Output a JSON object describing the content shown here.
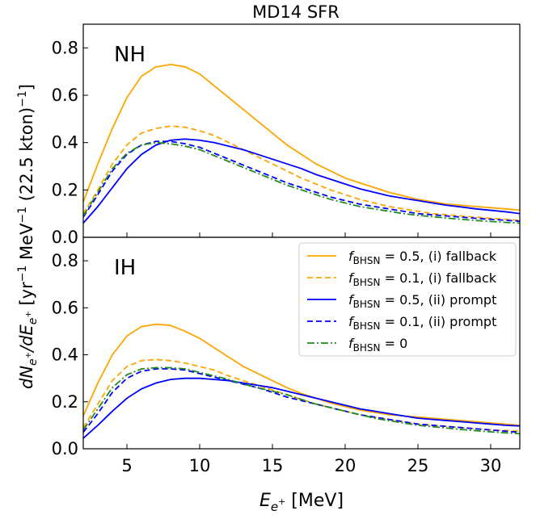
{
  "chart_data": {
    "type": "line",
    "title": "MD14 SFR",
    "xlabel": "E_{e^+} [MeV]",
    "ylabel": "dN_{e^+}/dE_{e^+} [yr^{-1} MeV^{-1} (22.5 kton)^{-1}]",
    "xlim": [
      2,
      32
    ],
    "ylim": [
      0,
      0.9
    ],
    "x_ticks": [
      5,
      10,
      15,
      20,
      25,
      30
    ],
    "y_ticks": [
      0.0,
      0.2,
      0.4,
      0.6,
      0.8
    ],
    "x": [
      2,
      3,
      4,
      5,
      6,
      7,
      8,
      9,
      10,
      11,
      12,
      13,
      14,
      15,
      16,
      17,
      18,
      19,
      20,
      21,
      22,
      23,
      24,
      25,
      26,
      27,
      28,
      29,
      30,
      31,
      32
    ],
    "legend": {
      "panel": "IH",
      "location": "upper-right",
      "entries": [
        {
          "prefix": "f",
          "sub": "BHSN",
          "suffix": " = 0.5, (i) fallback",
          "color": "#FFA500",
          "dash": "solid"
        },
        {
          "prefix": "f",
          "sub": "BHSN",
          "suffix": " = 0.1, (i) fallback",
          "color": "#FFA500",
          "dash": "dashed"
        },
        {
          "prefix": "f",
          "sub": "BHSN",
          "suffix": " = 0.5, (ii) prompt",
          "color": "#0000FF",
          "dash": "solid"
        },
        {
          "prefix": "f",
          "sub": "BHSN",
          "suffix": " = 0.1, (ii) prompt",
          "color": "#0000FF",
          "dash": "dashed"
        },
        {
          "prefix": "f",
          "sub": "BHSN",
          "suffix": " = 0",
          "color": "#228B22",
          "dash": "dashdot"
        }
      ]
    },
    "panels": [
      {
        "label": "NH",
        "series": [
          {
            "color": "#FFA500",
            "dash": "solid",
            "values": [
              0.15,
              0.31,
              0.46,
              0.59,
              0.68,
              0.72,
              0.73,
              0.72,
              0.69,
              0.64,
              0.59,
              0.54,
              0.49,
              0.44,
              0.39,
              0.35,
              0.31,
              0.28,
              0.25,
              0.23,
              0.21,
              0.19,
              0.175,
              0.16,
              0.15,
              0.14,
              0.135,
              0.13,
              0.125,
              0.12,
              0.115
            ]
          },
          {
            "color": "#FFA500",
            "dash": "dashed",
            "values": [
              0.1,
              0.2,
              0.31,
              0.39,
              0.44,
              0.46,
              0.47,
              0.465,
              0.45,
              0.43,
              0.4,
              0.37,
              0.34,
              0.31,
              0.28,
              0.25,
              0.225,
              0.2,
              0.18,
              0.16,
              0.145,
              0.13,
              0.12,
              0.11,
              0.1,
              0.095,
              0.09,
              0.085,
              0.08,
              0.076,
              0.072
            ]
          },
          {
            "color": "#0000FF",
            "dash": "solid",
            "values": [
              0.06,
              0.13,
              0.21,
              0.29,
              0.35,
              0.39,
              0.41,
              0.415,
              0.41,
              0.4,
              0.385,
              0.37,
              0.35,
              0.33,
              0.31,
              0.29,
              0.265,
              0.245,
              0.225,
              0.205,
              0.19,
              0.175,
              0.165,
              0.155,
              0.145,
              0.135,
              0.128,
              0.12,
              0.114,
              0.108,
              0.1
            ]
          },
          {
            "color": "#0000FF",
            "dash": "dashed",
            "values": [
              0.085,
              0.18,
              0.28,
              0.35,
              0.39,
              0.405,
              0.405,
              0.395,
              0.38,
              0.355,
              0.33,
              0.305,
              0.28,
              0.255,
              0.23,
              0.21,
              0.19,
              0.17,
              0.155,
              0.14,
              0.13,
              0.12,
              0.11,
              0.1,
              0.095,
              0.09,
              0.085,
              0.08,
              0.076,
              0.072,
              0.068
            ]
          },
          {
            "color": "#228B22",
            "dash": "dashdot",
            "values": [
              0.09,
              0.19,
              0.29,
              0.355,
              0.39,
              0.4,
              0.395,
              0.385,
              0.37,
              0.345,
              0.32,
              0.295,
              0.27,
              0.245,
              0.22,
              0.2,
              0.18,
              0.16,
              0.145,
              0.13,
              0.12,
              0.11,
              0.1,
              0.093,
              0.087,
              0.081,
              0.076,
              0.071,
              0.067,
              0.063,
              0.06
            ]
          }
        ]
      },
      {
        "label": "IH",
        "series": [
          {
            "color": "#FFA500",
            "dash": "solid",
            "values": [
              0.14,
              0.28,
              0.4,
              0.48,
              0.52,
              0.53,
              0.525,
              0.5,
              0.47,
              0.43,
              0.39,
              0.35,
              0.32,
              0.29,
              0.26,
              0.235,
              0.215,
              0.195,
              0.18,
              0.165,
              0.155,
              0.145,
              0.14,
              0.135,
              0.13,
              0.125,
              0.12,
              0.115,
              0.11,
              0.105,
              0.1
            ]
          },
          {
            "color": "#FFA500",
            "dash": "dashed",
            "values": [
              0.09,
              0.19,
              0.29,
              0.35,
              0.375,
              0.38,
              0.375,
              0.365,
              0.35,
              0.335,
              0.31,
              0.29,
              0.27,
              0.25,
              0.23,
              0.21,
              0.19,
              0.175,
              0.16,
              0.145,
              0.135,
              0.125,
              0.115,
              0.105,
              0.1,
              0.095,
              0.09,
              0.085,
              0.08,
              0.078,
              0.075
            ]
          },
          {
            "color": "#0000FF",
            "dash": "solid",
            "values": [
              0.045,
              0.1,
              0.16,
              0.215,
              0.255,
              0.28,
              0.295,
              0.3,
              0.3,
              0.295,
              0.29,
              0.28,
              0.27,
              0.26,
              0.245,
              0.23,
              0.215,
              0.2,
              0.185,
              0.17,
              0.16,
              0.15,
              0.14,
              0.13,
              0.125,
              0.12,
              0.115,
              0.11,
              0.105,
              0.1,
              0.097
            ]
          },
          {
            "color": "#0000FF",
            "dash": "dashed",
            "values": [
              0.07,
              0.15,
              0.24,
              0.3,
              0.33,
              0.34,
              0.34,
              0.335,
              0.32,
              0.305,
              0.29,
              0.275,
              0.26,
              0.24,
              0.22,
              0.205,
              0.19,
              0.175,
              0.16,
              0.145,
              0.135,
              0.125,
              0.115,
              0.105,
              0.1,
              0.095,
              0.09,
              0.085,
              0.08,
              0.075,
              0.07
            ]
          },
          {
            "color": "#228B22",
            "dash": "dashdot",
            "values": [
              0.08,
              0.17,
              0.26,
              0.315,
              0.34,
              0.345,
              0.345,
              0.34,
              0.325,
              0.31,
              0.295,
              0.275,
              0.26,
              0.245,
              0.23,
              0.21,
              0.19,
              0.175,
              0.16,
              0.145,
              0.13,
              0.12,
              0.11,
              0.1,
              0.094,
              0.088,
              0.082,
              0.077,
              0.072,
              0.068,
              0.064
            ]
          }
        ]
      }
    ]
  }
}
